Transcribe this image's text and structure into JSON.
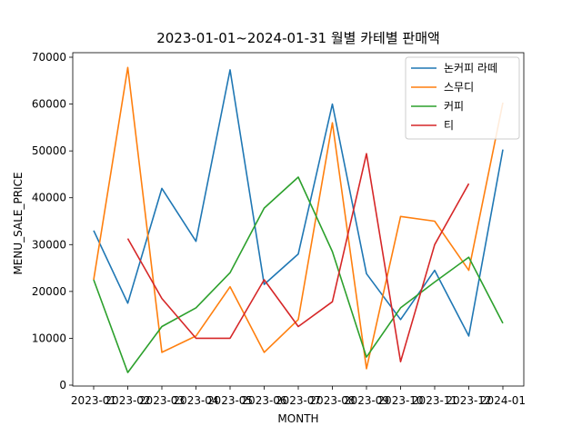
{
  "chart_data": {
    "type": "line",
    "title": "2023-01-01~2024-01-31 월별 카테별 판매액",
    "xlabel": "MONTH",
    "ylabel": "MENU_SALE_PRICE",
    "categories": [
      "2023-01",
      "2023-02",
      "2023-03",
      "2023-04",
      "2023-05",
      "2023-06",
      "2023-07",
      "2023-08",
      "2023-09",
      "2023-10",
      "2023-11",
      "2023-12",
      "2024-01"
    ],
    "ylim": [
      0,
      70000
    ],
    "yticks": [
      0,
      10000,
      20000,
      30000,
      40000,
      50000,
      60000,
      70000
    ],
    "grid": false,
    "legend_position": "top-right",
    "series": [
      {
        "name": "논커피 라떼",
        "color": "#1f77b4",
        "values": [
          33000,
          17500,
          42000,
          30700,
          67300,
          21500,
          28000,
          60000,
          23800,
          14000,
          24500,
          10500,
          50300
        ]
      },
      {
        "name": "스무디",
        "color": "#ff7f0e",
        "values": [
          22500,
          67800,
          7000,
          10500,
          21000,
          7000,
          14000,
          56000,
          3500,
          36000,
          35000,
          24500,
          60300
        ]
      },
      {
        "name": "커피",
        "color": "#2ca02c",
        "values": [
          22500,
          2700,
          12500,
          16500,
          24000,
          37800,
          44400,
          28500,
          6000,
          16500,
          22000,
          27300,
          13200
        ]
      },
      {
        "name": "티",
        "color": "#d62728",
        "values": [
          null,
          31300,
          18500,
          10000,
          10000,
          22500,
          12500,
          17800,
          49400,
          5000,
          30000,
          43000,
          null
        ]
      }
    ]
  }
}
